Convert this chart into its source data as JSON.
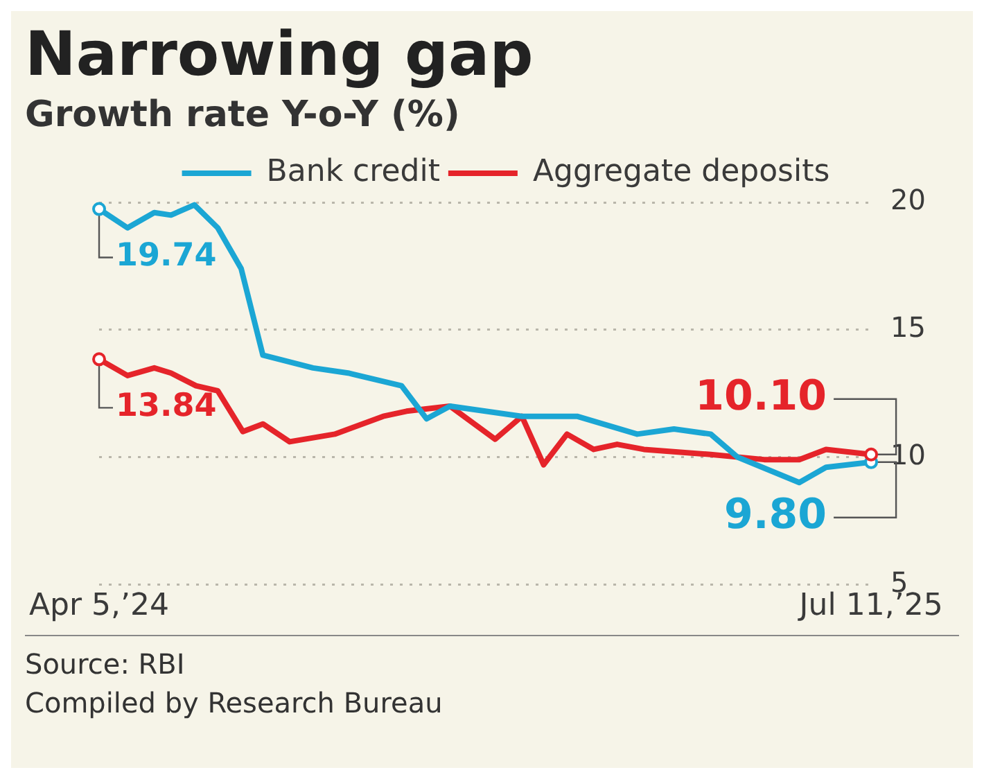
{
  "chart_data": {
    "type": "line",
    "title": "Narrowing gap",
    "subtitle": "Growth rate Y-o-Y (%)",
    "series": [
      {
        "name": "Bank credit",
        "color": "#1ba6d4",
        "x": [
          "2024-04-05",
          "2024-04-22",
          "2024-05-08",
          "2024-05-18",
          "2024-06-01",
          "2024-06-15",
          "2024-06-29",
          "2024-07-12",
          "2024-08-11",
          "2024-09-01",
          "2024-10-03",
          "2024-10-18",
          "2024-11-01",
          "2024-12-14",
          "2025-01-16",
          "2025-02-21",
          "2025-03-15",
          "2025-04-06",
          "2025-04-22",
          "2025-05-29",
          "2025-06-14",
          "2025-07-11"
        ],
        "values": [
          19.74,
          19.0,
          19.6,
          19.5,
          19.9,
          19.0,
          17.4,
          14.0,
          13.5,
          13.3,
          12.8,
          11.5,
          12.0,
          11.6,
          11.6,
          10.9,
          11.1,
          10.9,
          10.0,
          9.0,
          9.6,
          9.8
        ]
      },
      {
        "name": "Aggregate deposits",
        "color": "#e5242a",
        "x": [
          "2024-04-05",
          "2024-04-22",
          "2024-05-08",
          "2024-05-18",
          "2024-06-02",
          "2024-06-15",
          "2024-06-30",
          "2024-07-12",
          "2024-07-28",
          "2024-08-24",
          "2024-09-22",
          "2024-10-06",
          "2024-11-01",
          "2024-11-28",
          "2024-12-14",
          "2024-12-27",
          "2025-01-10",
          "2025-01-26",
          "2025-02-09",
          "2025-02-25",
          "2025-04-06",
          "2025-05-08",
          "2025-05-29",
          "2025-06-14",
          "2025-07-11"
        ],
        "values": [
          13.84,
          13.2,
          13.5,
          13.3,
          12.8,
          12.6,
          11.0,
          11.3,
          10.6,
          10.9,
          11.6,
          11.8,
          12.0,
          10.7,
          11.6,
          9.7,
          10.9,
          10.3,
          10.5,
          10.3,
          10.1,
          9.9,
          9.9,
          10.3,
          10.1
        ]
      }
    ],
    "xlim": [
      "2024-04-05",
      "2025-07-11"
    ],
    "xticks": [
      {
        "value": "2024-04-05",
        "label": "Apr 5,’24"
      },
      {
        "value": "2025-07-11",
        "label": "Jul 11,’25"
      }
    ],
    "ylim": [
      5,
      20
    ],
    "yticks": [
      5,
      10,
      15,
      20
    ],
    "grid": "y",
    "legend": "top",
    "line_style": "solid",
    "annotations": [
      {
        "text": "19.74",
        "x": "2024-04-05",
        "y": 19.74
      },
      {
        "text": "13.84",
        "x": "2024-04-05",
        "y": 13.84
      },
      {
        "text": "10.10",
        "x": "2025-07-11",
        "y": 10.1
      },
      {
        "text": "9.80",
        "x": "2025-07-11",
        "y": 9.8
      },
      "Source: RBI",
      "Compiled by Research Bureau"
    ]
  }
}
